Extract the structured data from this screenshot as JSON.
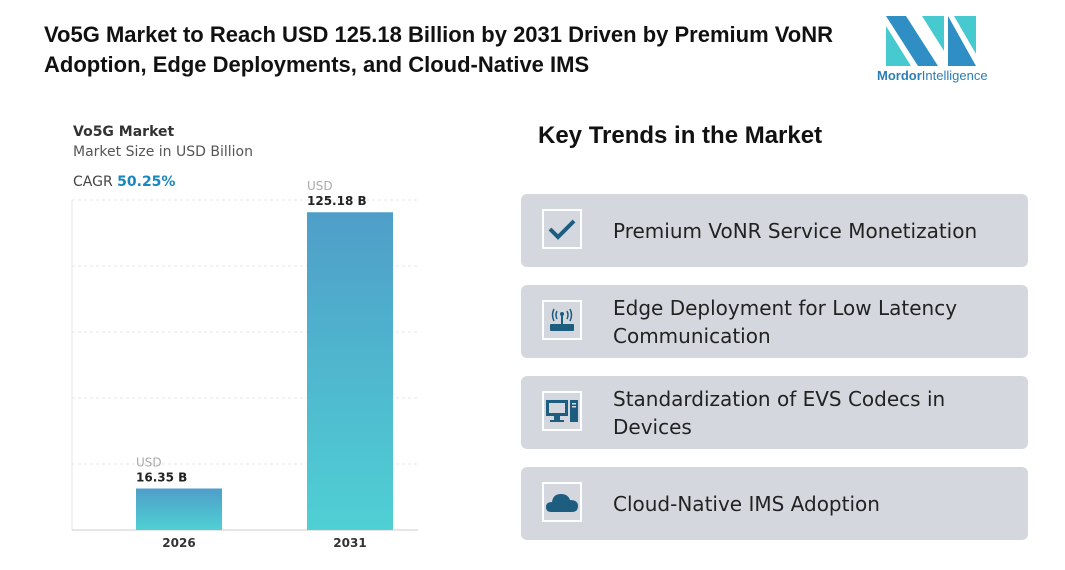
{
  "title": "Vo5G Market to Reach USD 125.18 Billion by 2031 Driven by Premium VoNR Adoption, Edge Deployments, and Cloud-Native IMS",
  "logo": {
    "brand": "Mordor",
    "suffix": "Intelligence"
  },
  "chart_data": {
    "type": "bar",
    "title": "Vo5G Market",
    "subtitle": "Market Size in USD Billion",
    "cagr_label": "CAGR",
    "cagr_value": "50.25%",
    "categories": [
      "2026",
      "2031"
    ],
    "values": [
      16.35,
      125.18
    ],
    "data_labels": [
      {
        "unit": "USD",
        "value": "16.35 B"
      },
      {
        "unit": "USD",
        "value": "125.18 B"
      }
    ],
    "ylim": [
      0,
      130
    ],
    "grid": true,
    "colors": {
      "bar_top": "#4f9ec9",
      "bar_bottom": "#4fd0d4",
      "accent": "#1a86c0"
    }
  },
  "trends": {
    "title": "Key Trends in the Market",
    "items": [
      {
        "icon": "checkmark-icon",
        "label": "Premium VoNR Service Monetization"
      },
      {
        "icon": "router-icon",
        "label": "Edge Deployment for Low Latency Communication"
      },
      {
        "icon": "desktop-computer-icon",
        "label": "Standardization of EVS Codecs in Devices"
      },
      {
        "icon": "cloud-icon",
        "label": "Cloud-Native IMS Adoption"
      }
    ]
  }
}
